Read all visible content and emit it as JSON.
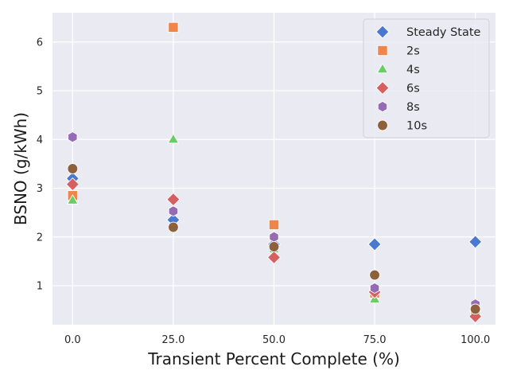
{
  "chart_data": {
    "type": "scatter",
    "xlabel": "Transient Percent Complete (%)",
    "ylabel": "BSNO (g/kWh)",
    "xlim": [
      -5,
      105
    ],
    "ylim": [
      0.2,
      6.6
    ],
    "xticks": [
      0,
      25,
      50,
      75,
      100
    ],
    "xtick_labels": [
      "0.0",
      "25.0",
      "50.0",
      "75.0",
      "100.0"
    ],
    "yticks": [
      1,
      2,
      3,
      4,
      5,
      6
    ],
    "ytick_labels": [
      "1",
      "2",
      "3",
      "4",
      "5",
      "6"
    ],
    "grid": true,
    "legend_position": "top-right",
    "series": [
      {
        "name": "Steady State",
        "marker": "diamond",
        "color": "#4878d0",
        "x": [
          0,
          25,
          50,
          75,
          100
        ],
        "y": [
          3.2,
          2.35,
          1.85,
          1.85,
          1.9
        ]
      },
      {
        "name": "2s",
        "marker": "square",
        "color": "#ee854a",
        "x": [
          0,
          25,
          50,
          75,
          100
        ],
        "y": [
          2.85,
          6.3,
          2.25,
          0.85,
          0.45
        ]
      },
      {
        "name": "4s",
        "marker": "triangle",
        "color": "#6acc64",
        "x": [
          0,
          25,
          50,
          75,
          100
        ],
        "y": [
          2.75,
          4.0,
          1.75,
          0.72,
          0.55
        ]
      },
      {
        "name": "6s",
        "marker": "diamond",
        "color": "#d65f5f",
        "x": [
          0,
          25,
          50,
          75,
          100
        ],
        "y": [
          3.08,
          2.77,
          1.58,
          0.87,
          0.37
        ]
      },
      {
        "name": "8s",
        "marker": "hexagon",
        "color": "#956cb4",
        "x": [
          0,
          25,
          50,
          75,
          100
        ],
        "y": [
          4.05,
          2.53,
          2.0,
          0.95,
          0.62
        ]
      },
      {
        "name": "10s",
        "marker": "circle",
        "color": "#8c613c",
        "x": [
          0,
          25,
          50,
          75,
          100
        ],
        "y": [
          3.4,
          2.2,
          1.8,
          1.22,
          0.52
        ]
      }
    ]
  }
}
